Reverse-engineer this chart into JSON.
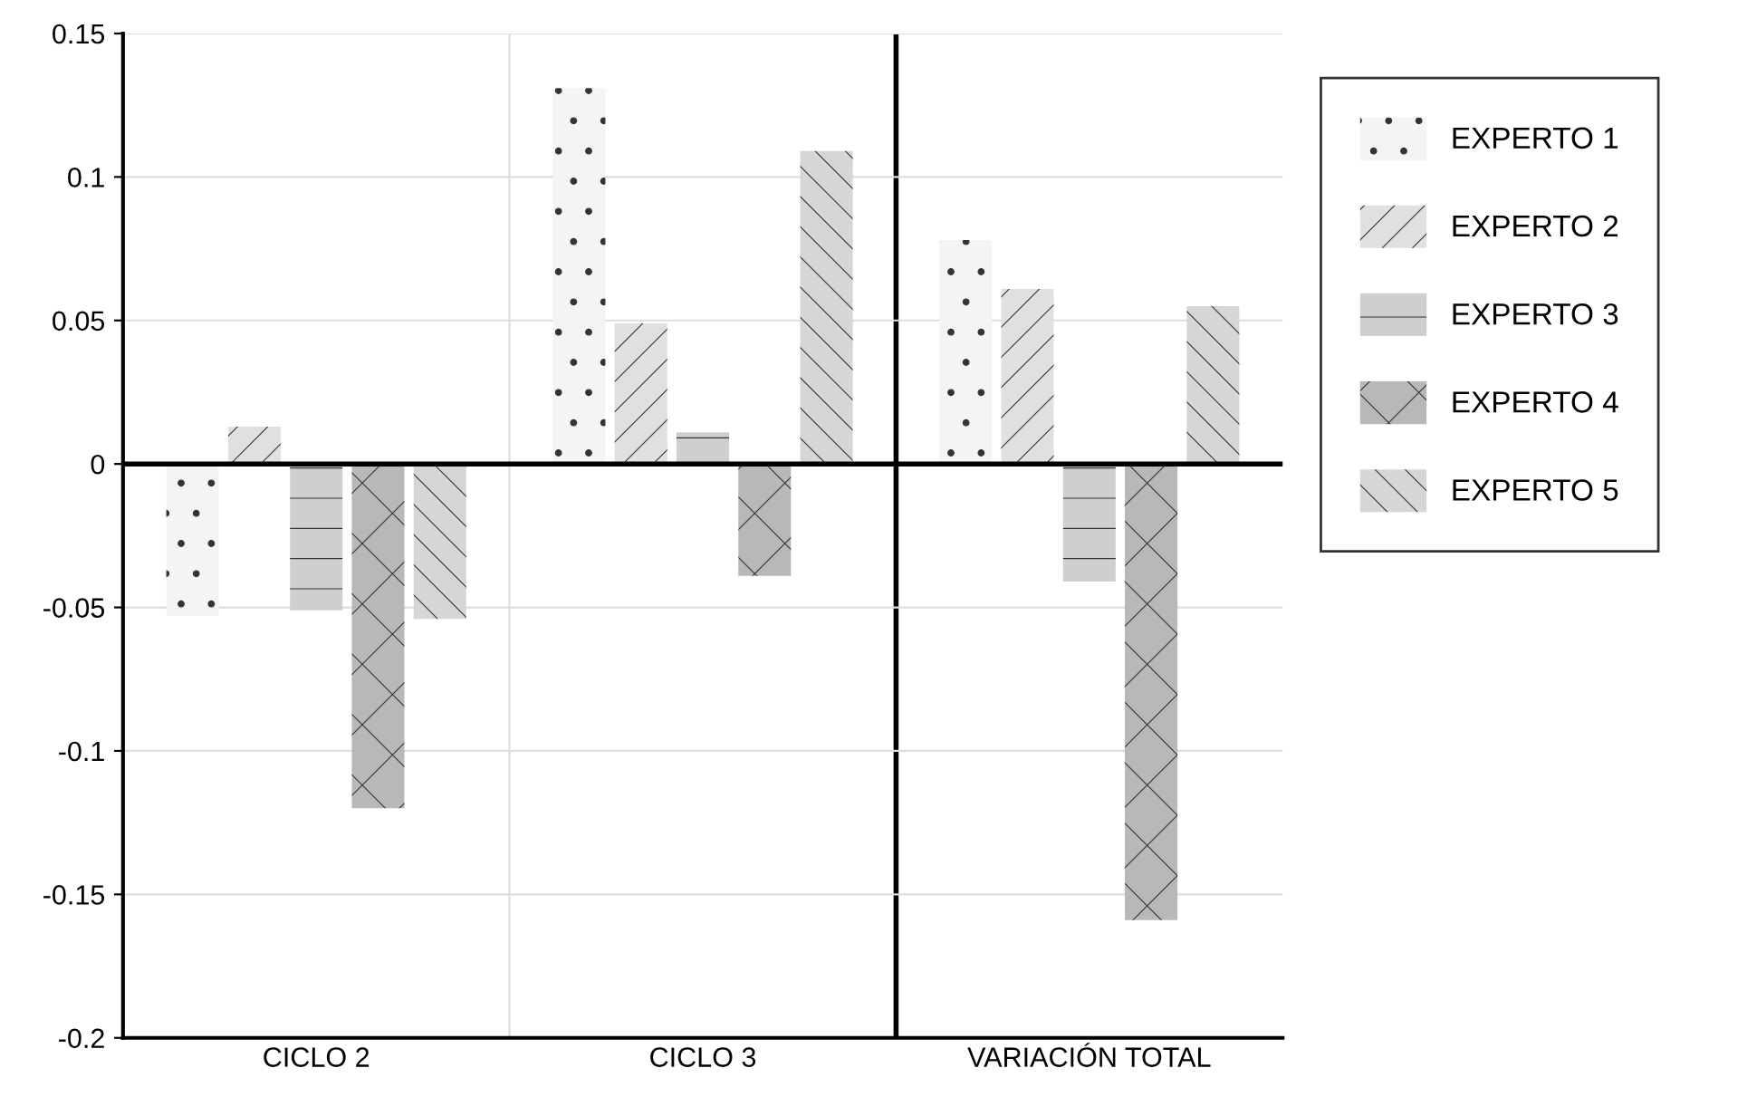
{
  "chart_data": {
    "type": "bar",
    "categories": [
      "CICLO 2",
      "CICLO 3",
      "VARIACIÓN TOTAL"
    ],
    "series": [
      {
        "name": "EXPERTO 1",
        "color": "#f4f4f4",
        "values": [
          -0.053,
          0.131,
          0.078
        ]
      },
      {
        "name": "EXPERTO 2",
        "color": "#e0e0e0",
        "values": [
          0.013,
          0.049,
          0.061
        ]
      },
      {
        "name": "EXPERTO 3",
        "color": "#cfcfcf",
        "values": [
          -0.051,
          0.011,
          -0.041
        ]
      },
      {
        "name": "EXPERTO 4",
        "color": "#b8b8b8",
        "values": [
          -0.12,
          -0.039,
          -0.159
        ]
      },
      {
        "name": "EXPERTO 5",
        "color": "#d6d6d6",
        "values": [
          -0.054,
          0.109,
          0.055
        ]
      }
    ],
    "ylim": [
      -0.2,
      0.15
    ],
    "yticks": [
      -0.2,
      -0.15,
      -0.1,
      -0.05,
      0,
      0.05,
      0.1,
      0.15
    ],
    "grid": "y",
    "legend": "right"
  }
}
